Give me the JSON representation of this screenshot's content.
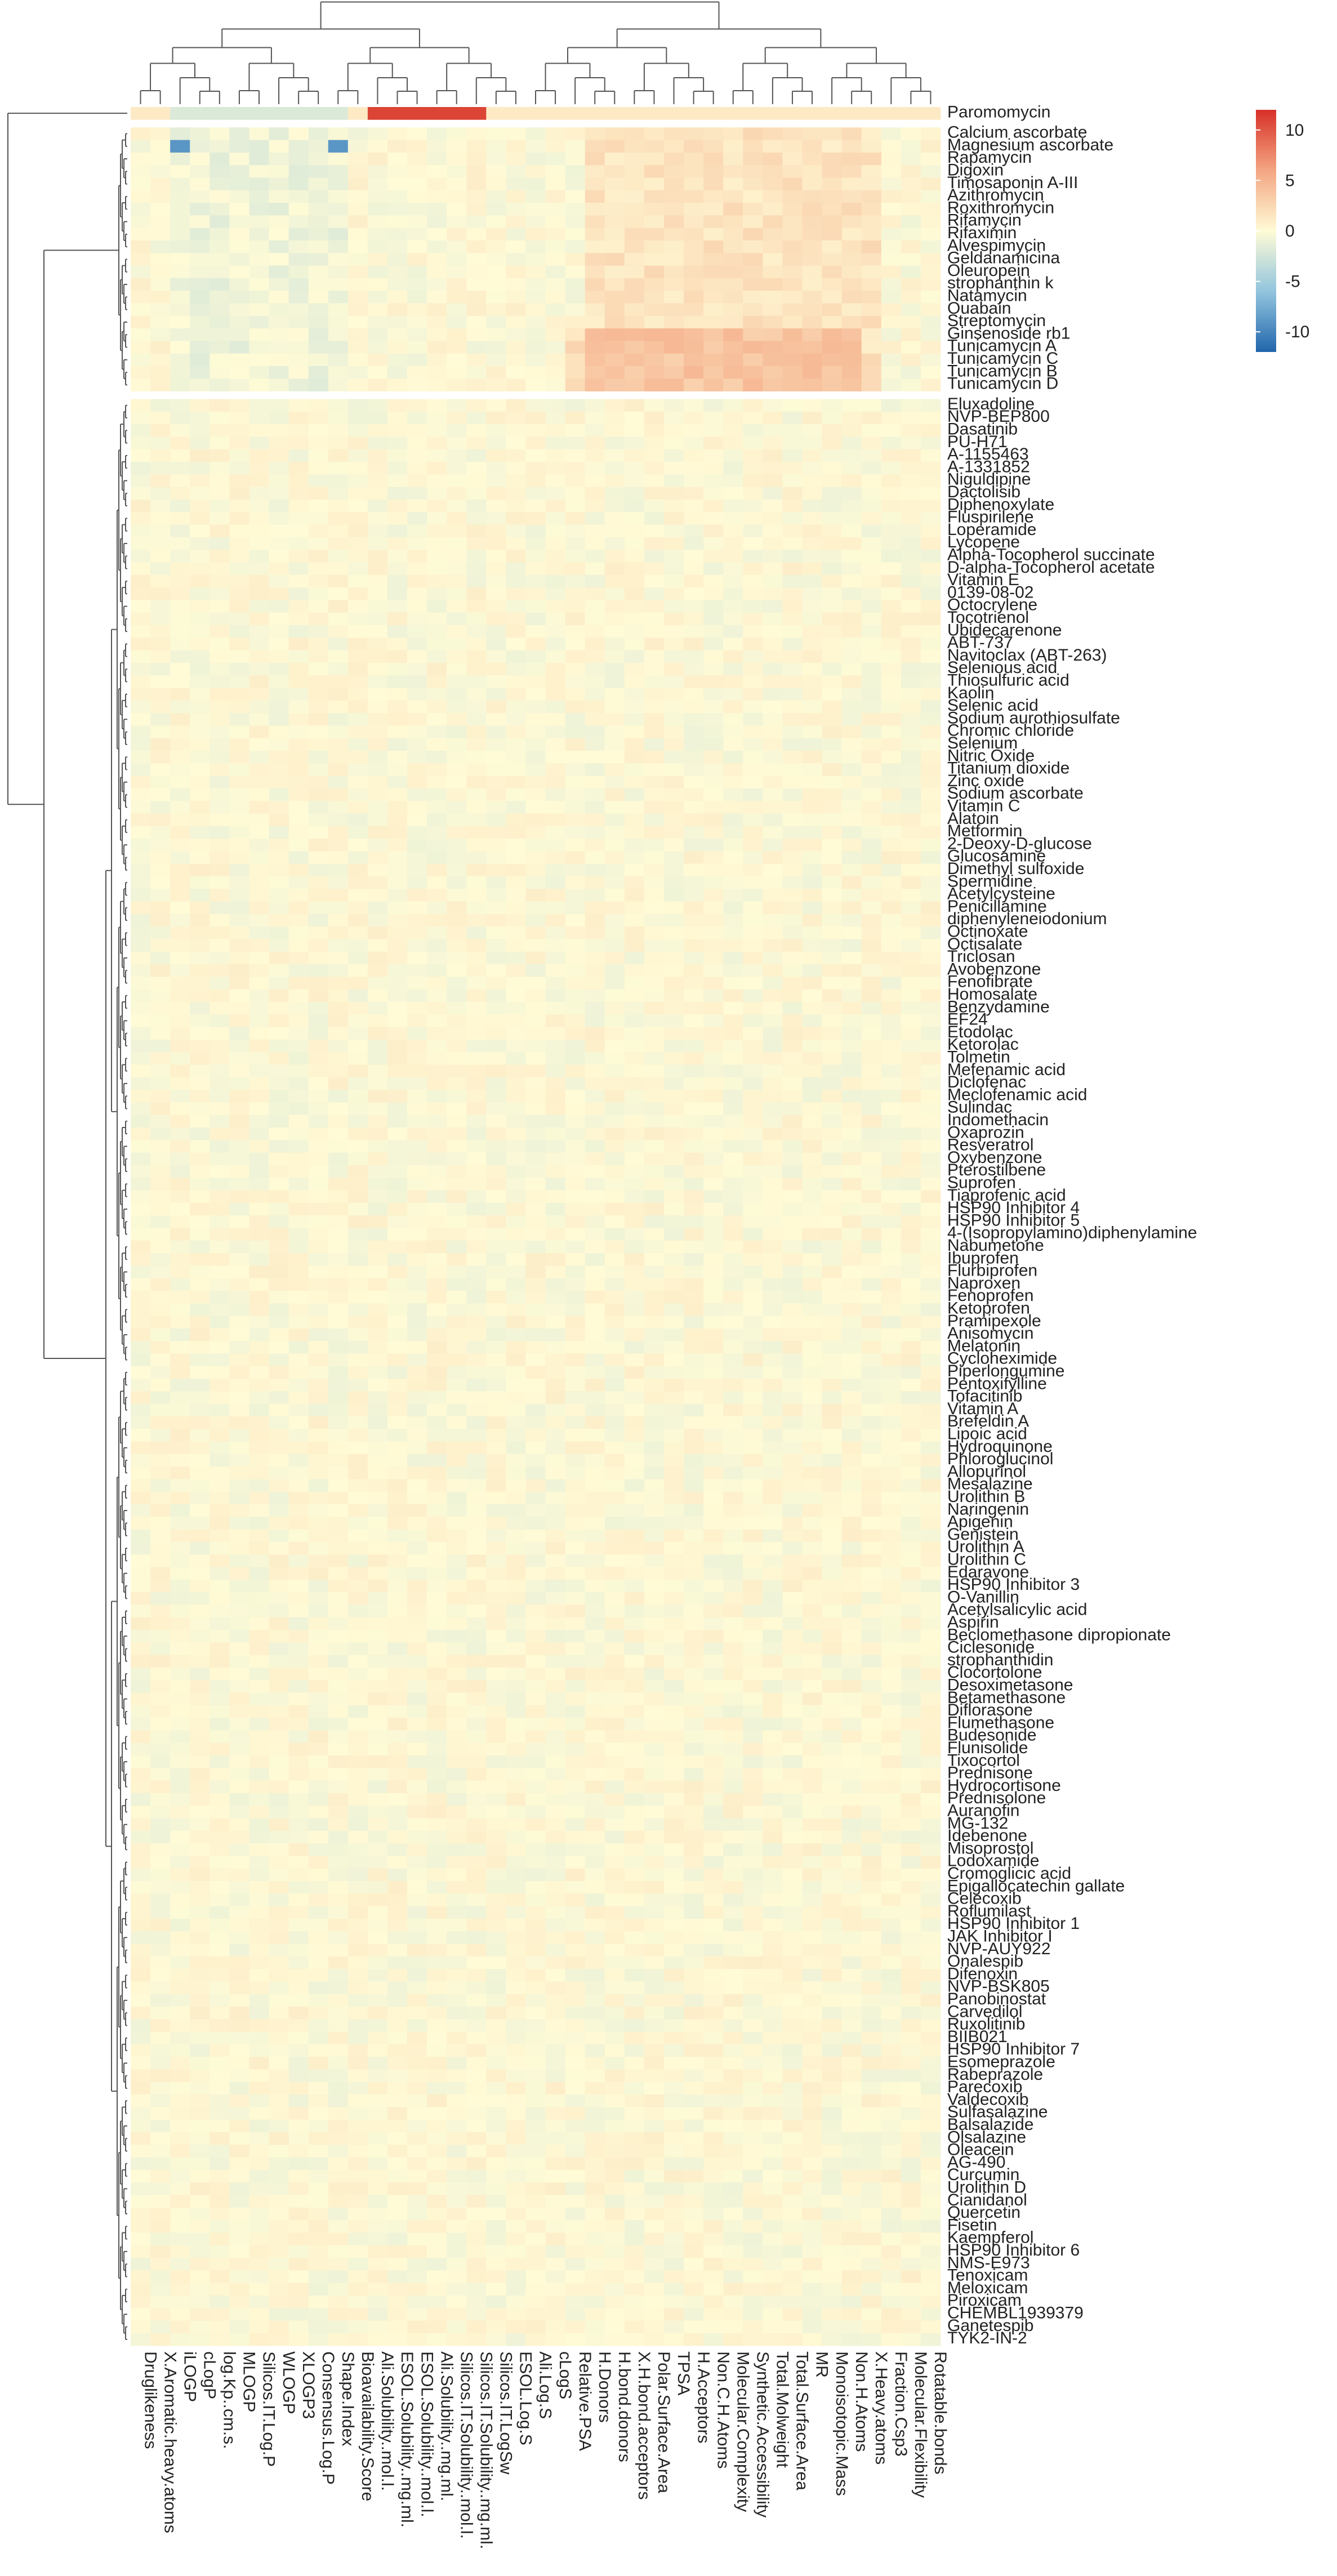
{
  "chart_data": {
    "type": "heatmap",
    "title": "",
    "xlabel": "",
    "ylabel": "",
    "legend": {
      "placement": "top-right",
      "ticks": [
        10,
        5,
        0,
        -5,
        -10
      ],
      "range": [
        -12,
        12
      ],
      "colors": [
        "#2166ac",
        "#92c5de",
        "#fffbd6",
        "#f4a582",
        "#d73027"
      ]
    },
    "columns": [
      "Druglikeness",
      "X.Aromatic.heavy.atoms",
      "iLOGP",
      "cLogP",
      "log.Kp..cm.s.",
      "MLOGP",
      "Silicos.IT.Log.P",
      "WLOGP",
      "XLOGP3",
      "Consensus.Log.P",
      "Shape.Index",
      "Bioavailability.Score",
      "Ali.Solubility..mol.l.",
      "ESOL.Solubility..mg.ml.",
      "ESOL.Solubility..mol.l.",
      "Ali.Solubility..mg.ml.",
      "Silicos.IT.Solubility..mol.l.",
      "Silicos.IT.Solubility..mg.ml.",
      "Silicos.IT.LogSw",
      "ESOL.Log.S",
      "Ali.Log.S",
      "cLogS",
      "Relative.PSA",
      "H.Donors",
      "H.bond.donors",
      "X.H.bond.acceptors",
      "Polar.Surface.Area",
      "TPSA",
      "H.Acceptors",
      "Non.C.H.Atoms",
      "Molecular.Complexity",
      "Synthetic.Accessibility",
      "Total.Molweight",
      "Total.Surface.Area",
      "MR",
      "Monoisotopic.Mass",
      "Non.H.Atoms",
      "X.Heavy.atoms",
      "Fraction.Csp3",
      "Molecular.Flexibility",
      "Rotatable.bonds"
    ],
    "row_groups": [
      {
        "rows": [
          "Paromomycin"
        ]
      },
      {
        "rows": [
          "Calcium ascorbate",
          "Magnesium ascorbate",
          "Rapamycin",
          "Digoxin",
          "Timosaponin A-III",
          "Azithromycin",
          "Roxithromycin",
          "Rifamycin",
          "Rifaximin",
          "Alvespimycin",
          "Geldanamicina",
          "Oleuropein",
          "strophanthin k",
          "Natamycin",
          "Ouabain",
          "Streptomycin",
          "Ginsenoside rb1",
          "Tunicamycin A",
          "Tunicamycin C",
          "Tunicamycin B",
          "Tunicamycin D"
        ]
      },
      {
        "rows": [
          "Eluxadoline",
          "NVP-BEP800",
          "Dasatinib",
          "PU-H71",
          "A-1155463",
          "A-1331852",
          "Niguldipine",
          "Dactolisib",
          "Diphenoxylate",
          "Fluspirilene",
          "Loperamide",
          "Lycopene",
          "Alpha-Tocopherol succinate",
          "D-alpha-Tocopherol acetate",
          "Vitamin E",
          "0139-08-02",
          "Octocrylene",
          "Tocotrienol",
          "Ubidecarenone",
          "ABT-737",
          "Navitoclax (ABT-263)",
          "Selenious acid",
          "Thiosulfuric acid",
          "Kaolin",
          "Selenic acid",
          "Sodium aurothiosulfate",
          "Chromic chloride",
          "Selenium",
          "Nitric Oxide",
          "Titanium dioxide",
          "Zinc oxide",
          "Sodium ascorbate",
          "Vitamin C",
          "Alatoin",
          "Metformin",
          "2-Deoxy-D-glucose",
          "Glucosamine",
          "Dimethyl sulfoxide",
          "Spermidine",
          "Acetylcysteine",
          "Penicillamine",
          "diphenyleneiodonium",
          "Octinoxate",
          "Octisalate",
          "Triclosan",
          "Avobenzone",
          "Fenofibrate",
          "Homosalate",
          "Benzydamine",
          "EF24",
          "Etodolac",
          "Ketorolac",
          "Tolmetin",
          "Mefenamic acid",
          "Diclofenac",
          "Meclofenamic acid",
          "Sulindac",
          "Indomethacin",
          "Oxaprozin",
          "Resveratrol",
          "Oxybenzone",
          "Pterostilbene",
          "Suprofen",
          "Tiaprofenic acid",
          "HSP90 Inhibitor 4",
          "HSP90 Inhibitor 5",
          "4-(Isopropylamino)diphenylamine",
          "Nabumetone",
          "Ibuprofen",
          "Flurbiprofen",
          "Naproxen",
          "Fenoprofen",
          "Ketoprofen",
          "Pramipexole",
          "Anisomycin",
          "Melatonin",
          "Cycloheximide",
          "Piperlongumine",
          "Pentoxifylline",
          "Tofacitinib",
          "Vitamin A",
          "Brefeldin A",
          "Lipoic acid",
          "Hydroquinone",
          "Phloroglucinol",
          "Allopurinol",
          "Mesalazine",
          "Urolithin B",
          "Naringenin",
          "Apigenin",
          "Genistein",
          "Urolithin A",
          "Urolithin C",
          "Edaravone",
          "HSP90 Inhibitor 3",
          "O-Vanillin",
          "Acetylsalicylic acid",
          "Aspirin",
          "Beclomethasone dipropionate",
          "Ciclesonide",
          "strophanthidin",
          "Clocortolone",
          "Desoximetasone",
          "Betamethasone",
          "Diflorasone",
          "Flumethasone",
          "Budesonide",
          "Flunisolide",
          "Tixocortol",
          "Prednisone",
          "Hydrocortisone",
          "Prednisolone",
          "Auranofin",
          "MG-132",
          "Idebenone",
          "Misoprostol",
          "Lodoxamide",
          "Cromoglicic acid",
          "Epigallocatechin gallate",
          "Celecoxib",
          "Roflumilast",
          "HSP90 Inhibitor 1",
          "JAK Inhibitor I",
          "NVP-AUY922",
          "Onalespib",
          "Difenoxin",
          "NVP-BSK805",
          "Panobinostat",
          "Carvedilol",
          "Ruxolitinib",
          "BIIB021",
          "HSP90 Inhibitor 7",
          "Esomeprazole",
          "Rabeprazole",
          "Parecoxib",
          "Valdecoxib",
          "Sulfasalazine",
          "Balsalazide",
          "Olsalazine",
          "Oleacein",
          "AG-490",
          "Curcumin",
          "Urolithin D",
          "Cianidanol",
          "Quercetin",
          "Fisetin",
          "Kaempferol",
          "HSP90 Inhibitor 6",
          "NMS-E973",
          "Tenoxicam",
          "Meloxicam",
          "Piroxicam",
          "CHEMBL1939379",
          "Ganetespib",
          "TYK2-IN-2"
        ]
      }
    ]
  }
}
